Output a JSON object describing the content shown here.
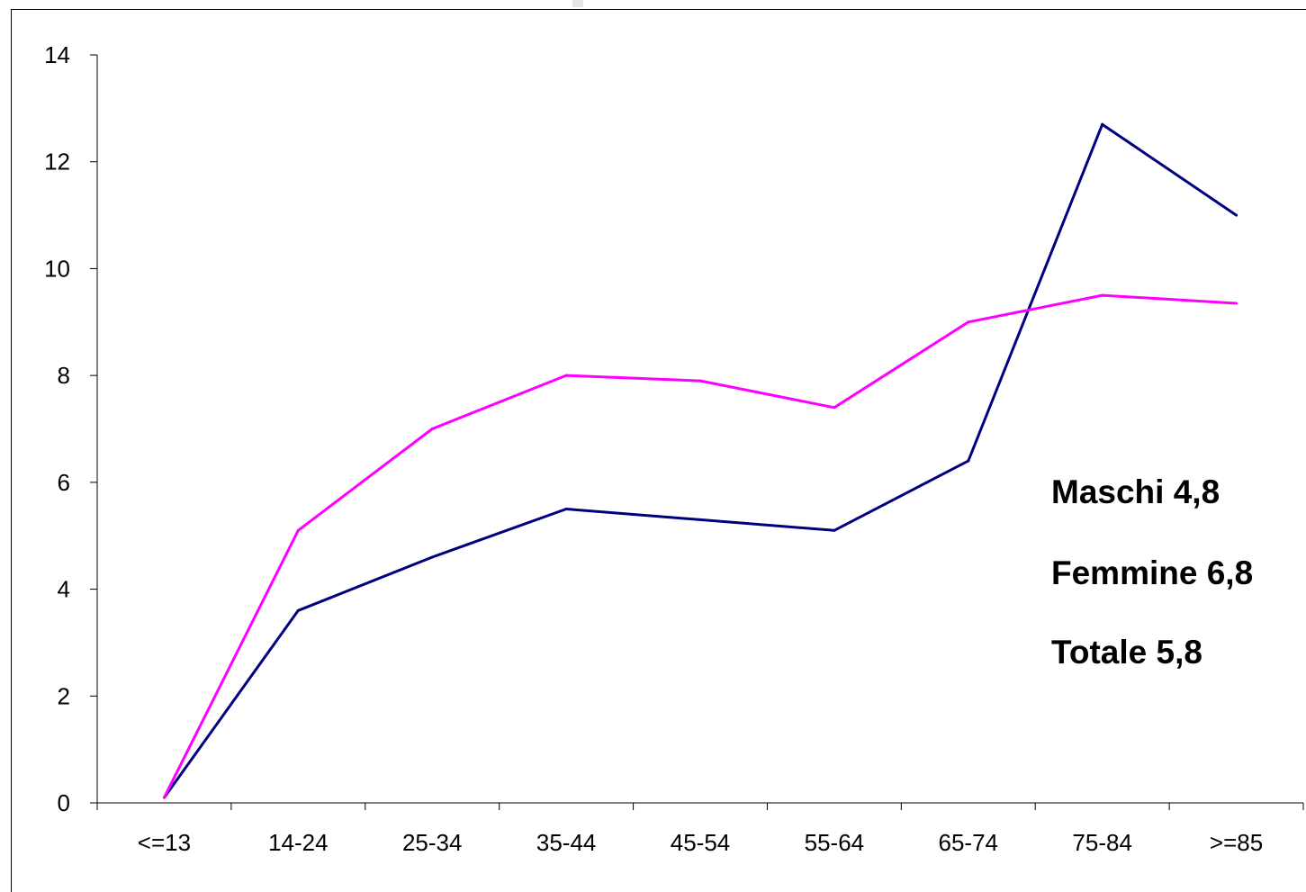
{
  "chart_data": {
    "type": "line",
    "categories": [
      "<=13",
      "14-24",
      "25-34",
      "35-44",
      "45-54",
      "55-64",
      "65-74",
      "75-84",
      ">=85"
    ],
    "series": [
      {
        "values": [
          0.1,
          3.6,
          4.6,
          5.5,
          5.3,
          5.1,
          6.4,
          12.7,
          11.0
        ],
        "color": "#000080"
      },
      {
        "values": [
          0.1,
          5.1,
          7.0,
          8.0,
          7.9,
          7.4,
          9.0,
          9.5,
          9.35
        ],
        "color": "#ff00ff"
      }
    ],
    "yticks": [
      "0",
      "2",
      "4",
      "6",
      "8",
      "10",
      "12",
      "14"
    ],
    "ylim": [
      0,
      14
    ],
    "grid": false,
    "annotations": [
      "Maschi 4,8",
      "Femmine 6,8",
      "Totale 5,8"
    ]
  }
}
